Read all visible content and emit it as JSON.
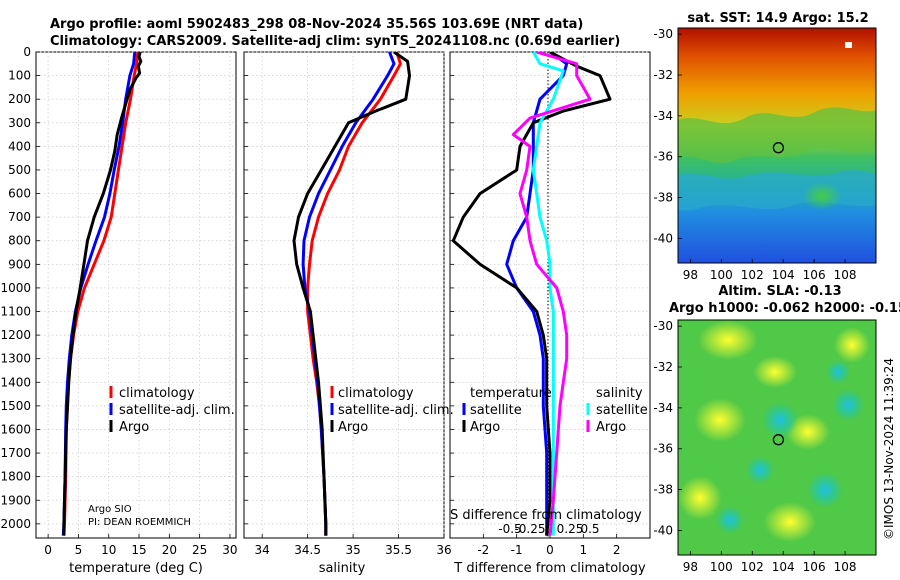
{
  "header": {
    "line1": "Argo profile: aoml 5902483_298 08-Nov-2024 35.56S 103.69E (NRT data)",
    "line2": "Climatology: CARS2009. Satellite-adj clim: synTS_20241108.nc (0.69d earlier)"
  },
  "colors": {
    "climatology": "#ff0000",
    "satellite_clim": "#0000ff",
    "argo": "#000000",
    "temp_satellite": "#00ffff",
    "sal_argo": "#ff00ff"
  },
  "chart_data": [
    {
      "type": "line",
      "id": "temperature",
      "xlabel": "temperature (deg C)",
      "ylabel": "",
      "xlim": [
        -2,
        31
      ],
      "ylim": [
        2060,
        0
      ],
      "xticks": [
        0,
        5,
        10,
        15,
        20,
        25,
        30
      ],
      "yticks": [
        0,
        100,
        200,
        300,
        400,
        500,
        600,
        700,
        800,
        900,
        1000,
        1100,
        1200,
        1300,
        1400,
        1500,
        1600,
        1700,
        1800,
        1900,
        2000
      ],
      "legend": [
        "climatology",
        "satellite-adj. clim.",
        "Argo"
      ],
      "annotation": [
        "Argo SIO",
        "PI: DEAN ROEMMICH"
      ],
      "series": [
        {
          "name": "climatology",
          "color": "#ff0000",
          "points": [
            [
              14.8,
              0
            ],
            [
              14.6,
              50
            ],
            [
              14.2,
              100
            ],
            [
              13.6,
              200
            ],
            [
              12.8,
              300
            ],
            [
              12.2,
              400
            ],
            [
              11.6,
              500
            ],
            [
              11.0,
              600
            ],
            [
              10.4,
              700
            ],
            [
              9.2,
              800
            ],
            [
              7.6,
              900
            ],
            [
              6.0,
              1000
            ],
            [
              4.9,
              1100
            ],
            [
              4.2,
              1200
            ],
            [
              3.7,
              1300
            ],
            [
              3.4,
              1400
            ],
            [
              3.2,
              1500
            ],
            [
              3.0,
              1600
            ],
            [
              2.9,
              1800
            ],
            [
              2.7,
              2000
            ],
            [
              2.6,
              2050
            ]
          ]
        },
        {
          "name": "satellite-adj. clim.",
          "color": "#0000ff",
          "points": [
            [
              14.3,
              0
            ],
            [
              14.1,
              50
            ],
            [
              13.5,
              100
            ],
            [
              12.8,
              200
            ],
            [
              12.3,
              300
            ],
            [
              11.7,
              400
            ],
            [
              10.9,
              500
            ],
            [
              10.2,
              600
            ],
            [
              9.3,
              700
            ],
            [
              7.9,
              800
            ],
            [
              6.6,
              900
            ],
            [
              5.4,
              1000
            ],
            [
              4.5,
              1100
            ],
            [
              3.9,
              1200
            ],
            [
              3.5,
              1300
            ],
            [
              3.2,
              1400
            ],
            [
              3.0,
              1500
            ],
            [
              2.9,
              1600
            ],
            [
              2.8,
              1800
            ],
            [
              2.6,
              2000
            ],
            [
              2.5,
              2050
            ]
          ]
        },
        {
          "name": "Argo",
          "color": "#000000",
          "points": [
            [
              15.2,
              0
            ],
            [
              15.0,
              20
            ],
            [
              15.3,
              40
            ],
            [
              14.9,
              60
            ],
            [
              15.1,
              90
            ],
            [
              14.5,
              110
            ],
            [
              13.5,
              160
            ],
            [
              12.8,
              220
            ],
            [
              12.1,
              280
            ],
            [
              11.4,
              350
            ],
            [
              11.0,
              420
            ],
            [
              10.3,
              500
            ],
            [
              9.1,
              600
            ],
            [
              7.6,
              700
            ],
            [
              6.5,
              800
            ],
            [
              5.9,
              900
            ],
            [
              5.3,
              1000
            ],
            [
              4.6,
              1100
            ],
            [
              4.1,
              1200
            ],
            [
              3.7,
              1300
            ],
            [
              3.4,
              1400
            ],
            [
              3.2,
              1500
            ],
            [
              3.0,
              1600
            ],
            [
              2.8,
              1800
            ],
            [
              2.6,
              2000
            ],
            [
              2.6,
              2050
            ]
          ]
        }
      ]
    },
    {
      "type": "line",
      "id": "salinity",
      "xlabel": "salinity",
      "ylabel": "",
      "xlim": [
        33.8,
        36.0
      ],
      "ylim": [
        2060,
        0
      ],
      "xticks": [
        34,
        34.5,
        35,
        35.5,
        36
      ],
      "legend": [
        "climatology",
        "satellite-adj. clim.",
        "Argo"
      ],
      "series": [
        {
          "name": "climatology",
          "color": "#ff0000",
          "points": [
            [
              35.48,
              0
            ],
            [
              35.52,
              50
            ],
            [
              35.45,
              100
            ],
            [
              35.3,
              200
            ],
            [
              35.1,
              300
            ],
            [
              34.95,
              400
            ],
            [
              34.85,
              500
            ],
            [
              34.72,
              600
            ],
            [
              34.62,
              700
            ],
            [
              34.55,
              800
            ],
            [
              34.52,
              900
            ],
            [
              34.5,
              1000
            ],
            [
              34.5,
              1100
            ],
            [
              34.53,
              1200
            ],
            [
              34.56,
              1300
            ],
            [
              34.6,
              1400
            ],
            [
              34.63,
              1500
            ],
            [
              34.65,
              1600
            ],
            [
              34.68,
              1800
            ],
            [
              34.7,
              2000
            ],
            [
              34.7,
              2050
            ]
          ]
        },
        {
          "name": "satellite-adj. clim.",
          "color": "#0000ff",
          "points": [
            [
              35.4,
              0
            ],
            [
              35.45,
              50
            ],
            [
              35.38,
              100
            ],
            [
              35.22,
              200
            ],
            [
              35.03,
              300
            ],
            [
              34.88,
              400
            ],
            [
              34.75,
              500
            ],
            [
              34.62,
              600
            ],
            [
              34.52,
              700
            ],
            [
              34.46,
              800
            ],
            [
              34.45,
              900
            ],
            [
              34.47,
              1000
            ],
            [
              34.52,
              1100
            ],
            [
              34.55,
              1200
            ],
            [
              34.58,
              1300
            ],
            [
              34.61,
              1400
            ],
            [
              34.63,
              1500
            ],
            [
              34.65,
              1600
            ],
            [
              34.68,
              1800
            ],
            [
              34.7,
              2000
            ],
            [
              34.7,
              2050
            ]
          ]
        },
        {
          "name": "Argo",
          "color": "#000000",
          "points": [
            [
              35.45,
              0
            ],
            [
              35.6,
              40
            ],
            [
              35.62,
              100
            ],
            [
              35.58,
              200
            ],
            [
              35.25,
              250
            ],
            [
              34.95,
              300
            ],
            [
              34.8,
              400
            ],
            [
              34.65,
              500
            ],
            [
              34.5,
              600
            ],
            [
              34.4,
              700
            ],
            [
              34.35,
              800
            ],
            [
              34.38,
              900
            ],
            [
              34.45,
              1000
            ],
            [
              34.53,
              1100
            ],
            [
              34.56,
              1200
            ],
            [
              34.59,
              1300
            ],
            [
              34.62,
              1400
            ],
            [
              34.64,
              1500
            ],
            [
              34.66,
              1600
            ],
            [
              34.68,
              1800
            ],
            [
              34.7,
              2000
            ],
            [
              34.7,
              2050
            ]
          ]
        }
      ]
    },
    {
      "type": "line",
      "id": "difference",
      "xlabel": "T difference from climatology",
      "ylabel": "",
      "xlim": [
        -3.0,
        3.0
      ],
      "ylim": [
        2060,
        0
      ],
      "xticks": [
        -2,
        -1,
        0,
        1,
        2
      ],
      "secondary_xlabel": "S difference from climatology",
      "secondary_xticks": [
        "-0.5",
        "-0.25",
        "0",
        "0.25",
        "0.5"
      ],
      "legend_temperature": {
        "title": "temperature",
        "items": [
          "satellite",
          "Argo"
        ]
      },
      "legend_salinity": {
        "title": "salinity",
        "items": [
          "satellite",
          "Argo"
        ]
      },
      "series": [
        {
          "name": "temperature satellite",
          "color": "#0000ff",
          "points": [
            [
              0.0,
              0
            ],
            [
              0.5,
              50
            ],
            [
              0.4,
              100
            ],
            [
              -0.3,
              200
            ],
            [
              -0.5,
              300
            ],
            [
              -0.5,
              400
            ],
            [
              -0.5,
              500
            ],
            [
              -0.6,
              600
            ],
            [
              -0.7,
              700
            ],
            [
              -1.1,
              800
            ],
            [
              -1.3,
              900
            ],
            [
              -1.0,
              1000
            ],
            [
              -0.5,
              1100
            ],
            [
              -0.3,
              1200
            ],
            [
              -0.2,
              1300
            ],
            [
              -0.2,
              1500
            ],
            [
              -0.1,
              1700
            ],
            [
              -0.1,
              1900
            ],
            [
              -0.1,
              2050
            ]
          ]
        },
        {
          "name": "temperature Argo",
          "color": "#000000",
          "points": [
            [
              0.0,
              0
            ],
            [
              0.8,
              60
            ],
            [
              1.5,
              100
            ],
            [
              1.8,
              200
            ],
            [
              0.4,
              250
            ],
            [
              -0.5,
              300
            ],
            [
              -0.9,
              400
            ],
            [
              -1.0,
              500
            ],
            [
              -2.1,
              600
            ],
            [
              -2.6,
              700
            ],
            [
              -2.9,
              800
            ],
            [
              -2.1,
              900
            ],
            [
              -1.0,
              1000
            ],
            [
              -0.4,
              1100
            ],
            [
              -0.2,
              1200
            ],
            [
              -0.1,
              1300
            ],
            [
              -0.1,
              1500
            ],
            [
              0.0,
              1700
            ],
            [
              0.0,
              1900
            ],
            [
              -0.1,
              2050
            ]
          ]
        },
        {
          "name": "salinity satellite",
          "color": "#00ffff",
          "points": [
            [
              -0.5,
              0
            ],
            [
              -0.3,
              50
            ],
            [
              0.4,
              80
            ],
            [
              0.1,
              200
            ],
            [
              -0.3,
              300
            ],
            [
              -0.4,
              400
            ],
            [
              -0.5,
              500
            ],
            [
              -0.4,
              600
            ],
            [
              -0.3,
              700
            ],
            [
              -0.1,
              800
            ],
            [
              0.0,
              900
            ],
            [
              0.0,
              1000
            ],
            [
              0.1,
              1100
            ],
            [
              0.1,
              1300
            ],
            [
              0.1,
              1500
            ],
            [
              0.1,
              1700
            ],
            [
              0.1,
              1900
            ],
            [
              0.1,
              2050
            ]
          ]
        },
        {
          "name": "salinity Argo",
          "color": "#ff00ff",
          "points": [
            [
              -0.4,
              0
            ],
            [
              0.8,
              50
            ],
            [
              0.8,
              100
            ],
            [
              1.2,
              200
            ],
            [
              -0.6,
              280
            ],
            [
              -1.1,
              350
            ],
            [
              -0.6,
              400
            ],
            [
              -0.7,
              500
            ],
            [
              -0.9,
              600
            ],
            [
              -0.7,
              700
            ],
            [
              -0.6,
              800
            ],
            [
              -0.4,
              900
            ],
            [
              0.2,
              1000
            ],
            [
              0.4,
              1100
            ],
            [
              0.5,
              1200
            ],
            [
              0.5,
              1300
            ],
            [
              0.4,
              1400
            ],
            [
              0.3,
              1500
            ],
            [
              0.2,
              1700
            ],
            [
              0.1,
              1900
            ],
            [
              0.0,
              2050
            ]
          ]
        }
      ]
    },
    {
      "type": "heatmap",
      "id": "sst_map",
      "title": "sat. SST: 14.9 Argo: 15.2",
      "xlim": [
        97.2,
        110
      ],
      "ylim": [
        -41.2,
        -29.7
      ],
      "xticks": [
        98,
        100,
        102,
        104,
        106,
        108
      ],
      "yticks": [
        -30,
        -32,
        -34,
        -36,
        -38,
        -40
      ],
      "marker": {
        "lon": 103.69,
        "lat": -35.56
      }
    },
    {
      "type": "heatmap",
      "id": "sla_map",
      "title": "Altim. SLA: -0.13",
      "subtitle": "Argo h1000: -0.062 h2000: -0.15",
      "xlim": [
        97.2,
        110
      ],
      "ylim": [
        -41.2,
        -29.7
      ],
      "xticks": [
        98,
        100,
        102,
        104,
        106,
        108
      ],
      "yticks": [
        -30,
        -32,
        -34,
        -36,
        -38,
        -40
      ],
      "marker": {
        "lon": 103.69,
        "lat": -35.56
      }
    }
  ],
  "watermark": "©IMOS 13-Nov-2024 11:39:24"
}
